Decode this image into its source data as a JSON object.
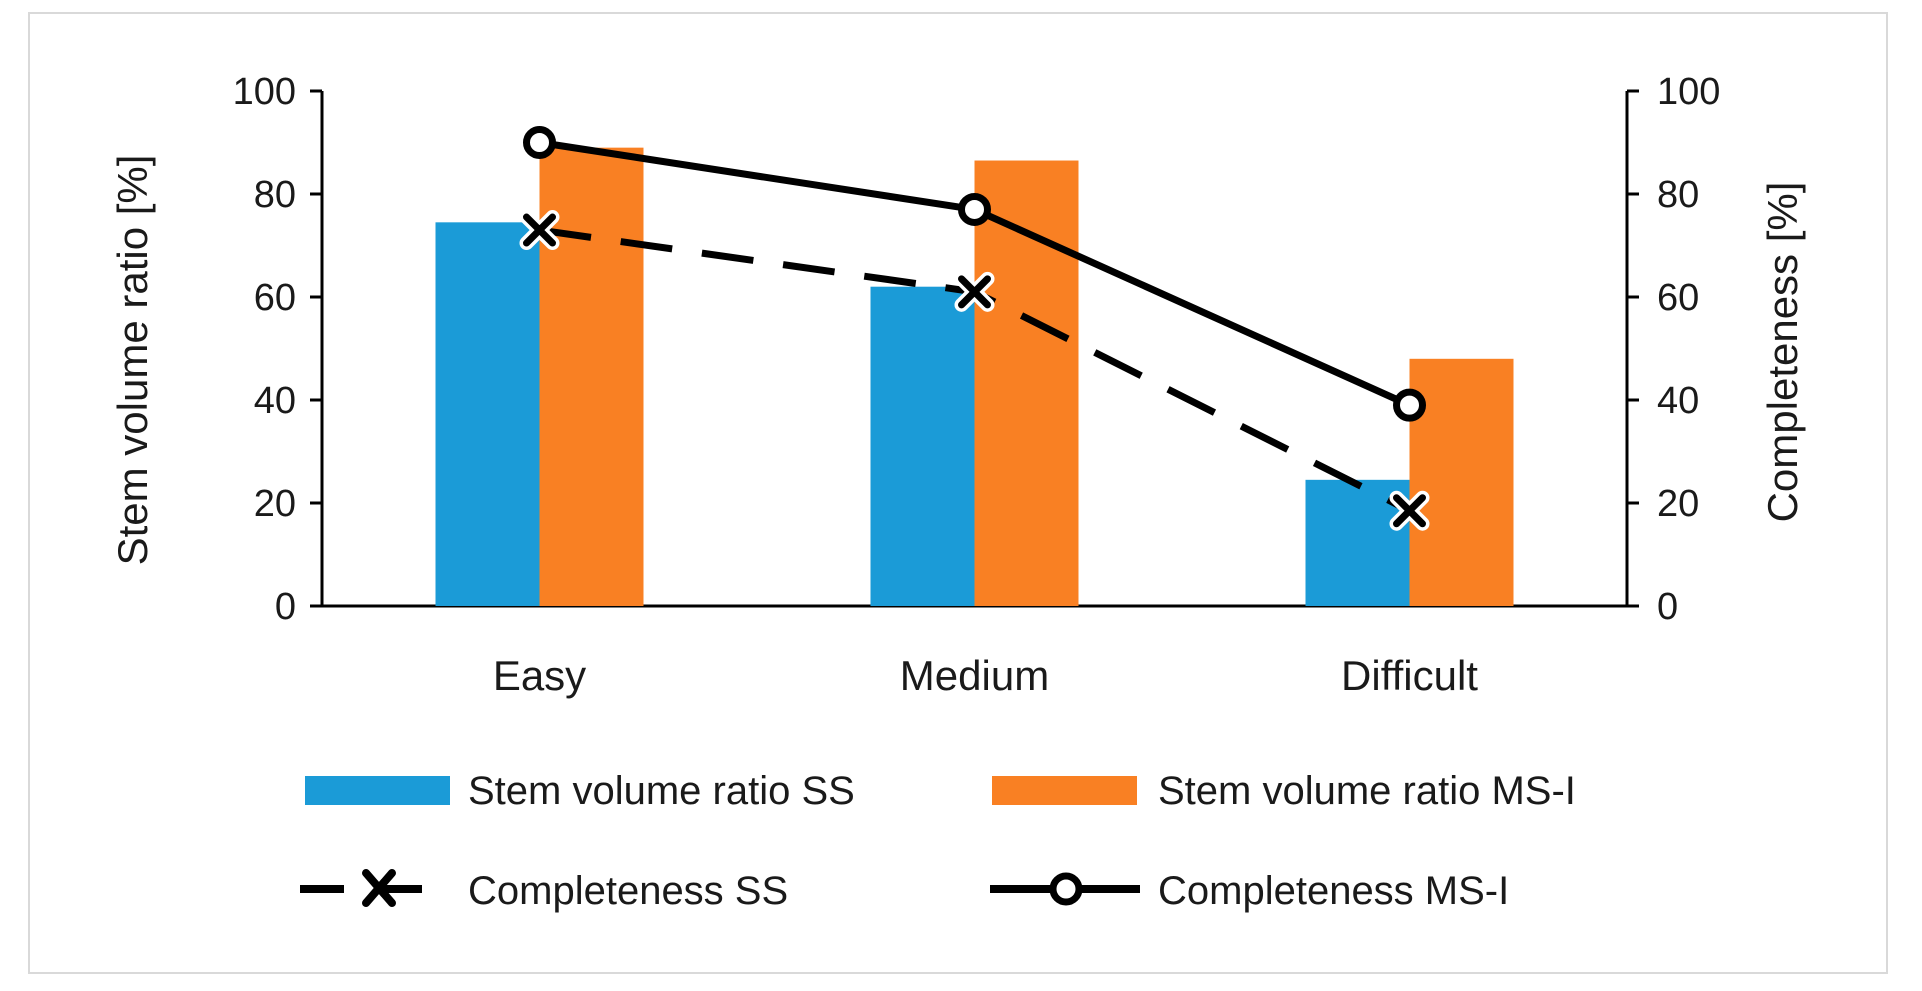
{
  "chart_data": {
    "type": "bar+line",
    "categories": [
      "Easy",
      "Medium",
      "Difficult"
    ],
    "bar_series": [
      {
        "name": "Stem volume ratio SS",
        "values": [
          74.5,
          62,
          24.5
        ],
        "color": "#1b9bd7"
      },
      {
        "name": "Stem volume ratio MS-I",
        "values": [
          89,
          86.5,
          48
        ],
        "color": "#f98023"
      }
    ],
    "line_series": [
      {
        "name": "Completeness SS",
        "values": [
          73,
          61,
          18.5
        ],
        "style": "dashed",
        "marker": "x",
        "color": "#000000"
      },
      {
        "name": "Completeness MS-I",
        "values": [
          90,
          77,
          39
        ],
        "style": "solid",
        "marker": "circle",
        "color": "#000000"
      }
    ],
    "y_left": {
      "label": "Stem volume ratio [%]",
      "ticks": [
        "0",
        "20",
        "40",
        "60",
        "80",
        "100"
      ],
      "ylim": [
        0,
        100
      ]
    },
    "y_right": {
      "label": "Completeness [%]",
      "ticks": [
        "0",
        "20",
        "40",
        "60",
        "80",
        "100"
      ],
      "ylim": [
        0,
        100
      ]
    },
    "grid": false,
    "legend_position": "bottom"
  }
}
